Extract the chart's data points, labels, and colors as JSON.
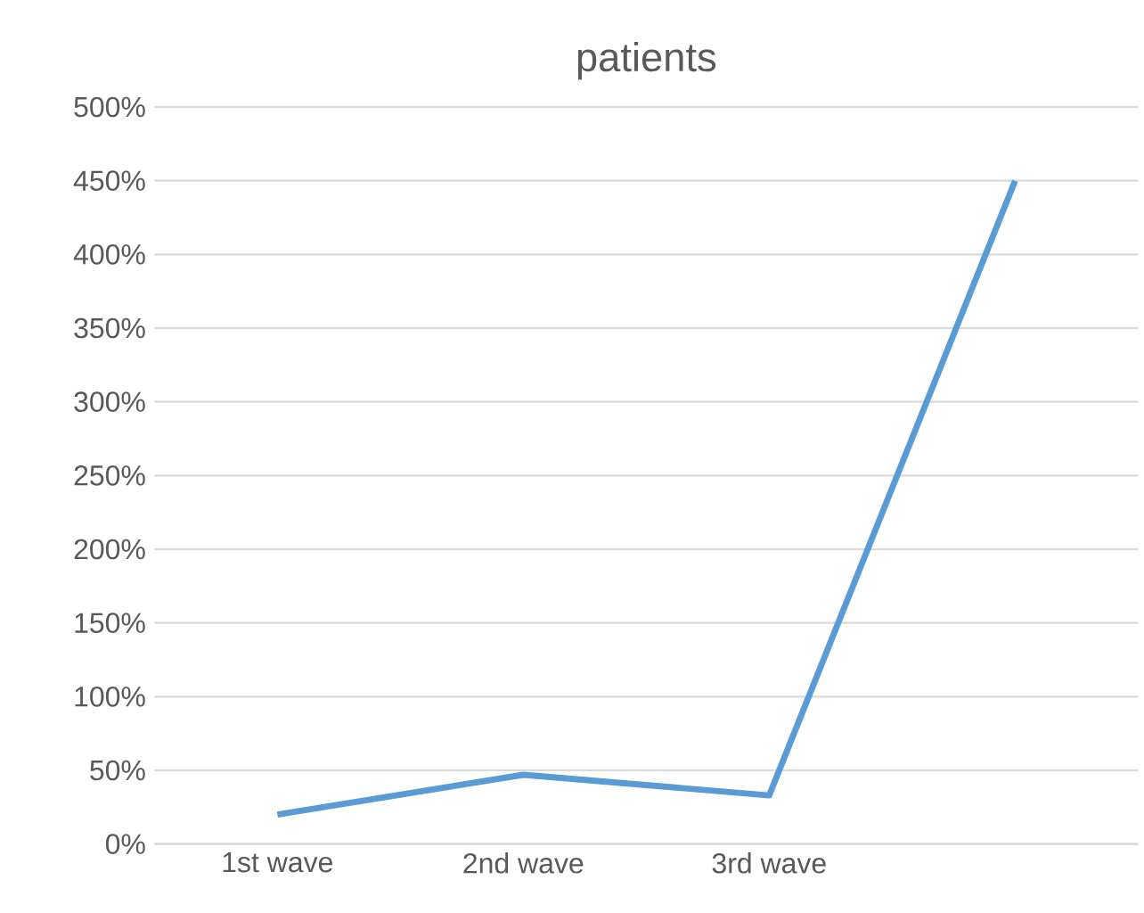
{
  "chart_data": {
    "type": "line",
    "title": "patients",
    "categories": [
      "1st wave",
      "2nd wave",
      "3rd wave",
      null
    ],
    "series": [
      {
        "color": "#5b9bd5",
        "values": [
          20,
          47,
          33,
          450
        ]
      }
    ],
    "ylim": [
      0,
      500
    ],
    "yticks": [
      {
        "value": 0,
        "label": "0%"
      },
      {
        "value": 50,
        "label": "50%"
      },
      {
        "value": 100,
        "label": "100%"
      },
      {
        "value": 150,
        "label": "150%"
      },
      {
        "value": 200,
        "label": "200%"
      },
      {
        "value": 250,
        "label": "250%"
      },
      {
        "value": 300,
        "label": "300%"
      },
      {
        "value": 350,
        "label": "350%"
      },
      {
        "value": 400,
        "label": "400%"
      },
      {
        "value": 450,
        "label": "450%"
      },
      {
        "value": 500,
        "label": "500%"
      }
    ],
    "grid": "y",
    "marker": "none",
    "line_style": "solid"
  }
}
